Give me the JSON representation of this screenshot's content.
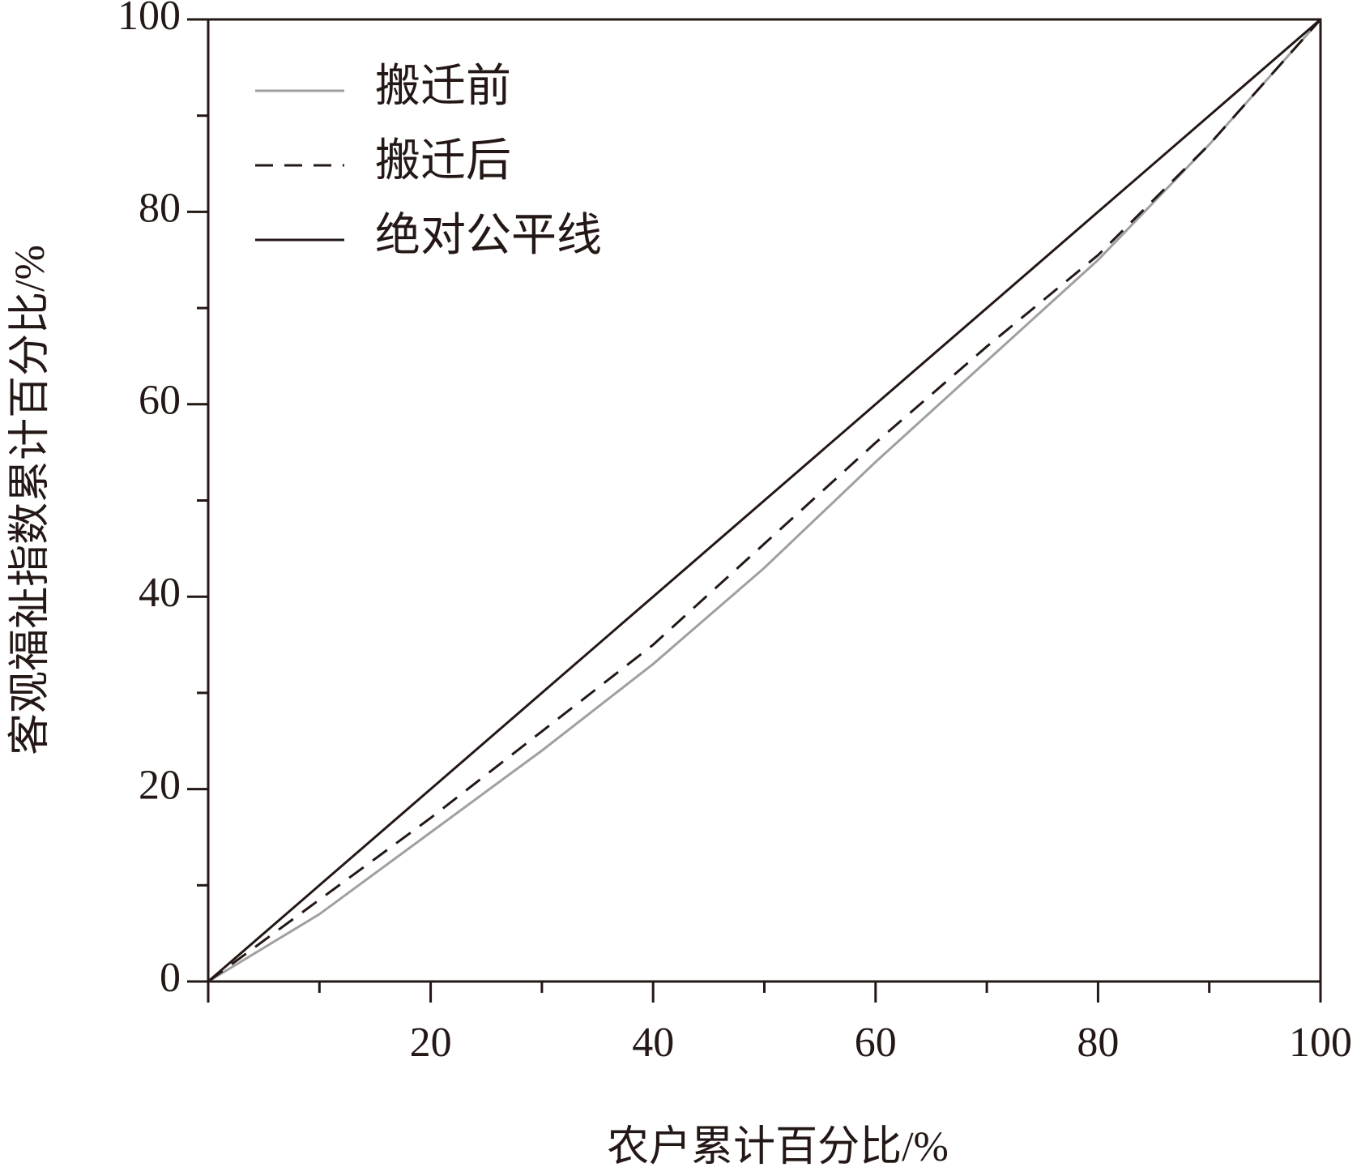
{
  "chart_data": {
    "type": "line",
    "x_label": "农户累计百分比/%",
    "y_label": "客观福祉指数累计百分比/%",
    "x": [
      0,
      10,
      20,
      30,
      40,
      50,
      60,
      70,
      80,
      90,
      100
    ],
    "series": [
      {
        "name": "搬迁前",
        "color": "#a0a0a0",
        "dash": "solid",
        "values": [
          0,
          7,
          15.5,
          24,
          33,
          43,
          54,
          64.5,
          75,
          87,
          100
        ]
      },
      {
        "name": "搬迁后",
        "color": "#231815",
        "dash": "dashed",
        "values": [
          0,
          8.5,
          17,
          26,
          35,
          45.5,
          56,
          66,
          75.5,
          87,
          100
        ]
      },
      {
        "name": "绝对公平线",
        "color": "#231815",
        "dash": "solid",
        "values": [
          0,
          10,
          20,
          30,
          40,
          50,
          60,
          70,
          80,
          90,
          100
        ]
      }
    ],
    "xlim": [
      0,
      100
    ],
    "ylim": [
      0,
      100
    ],
    "xticks": [
      20,
      40,
      60,
      80,
      100
    ],
    "yticks": [
      0,
      20,
      40,
      60,
      80,
      100
    ],
    "legend": "upper left"
  }
}
